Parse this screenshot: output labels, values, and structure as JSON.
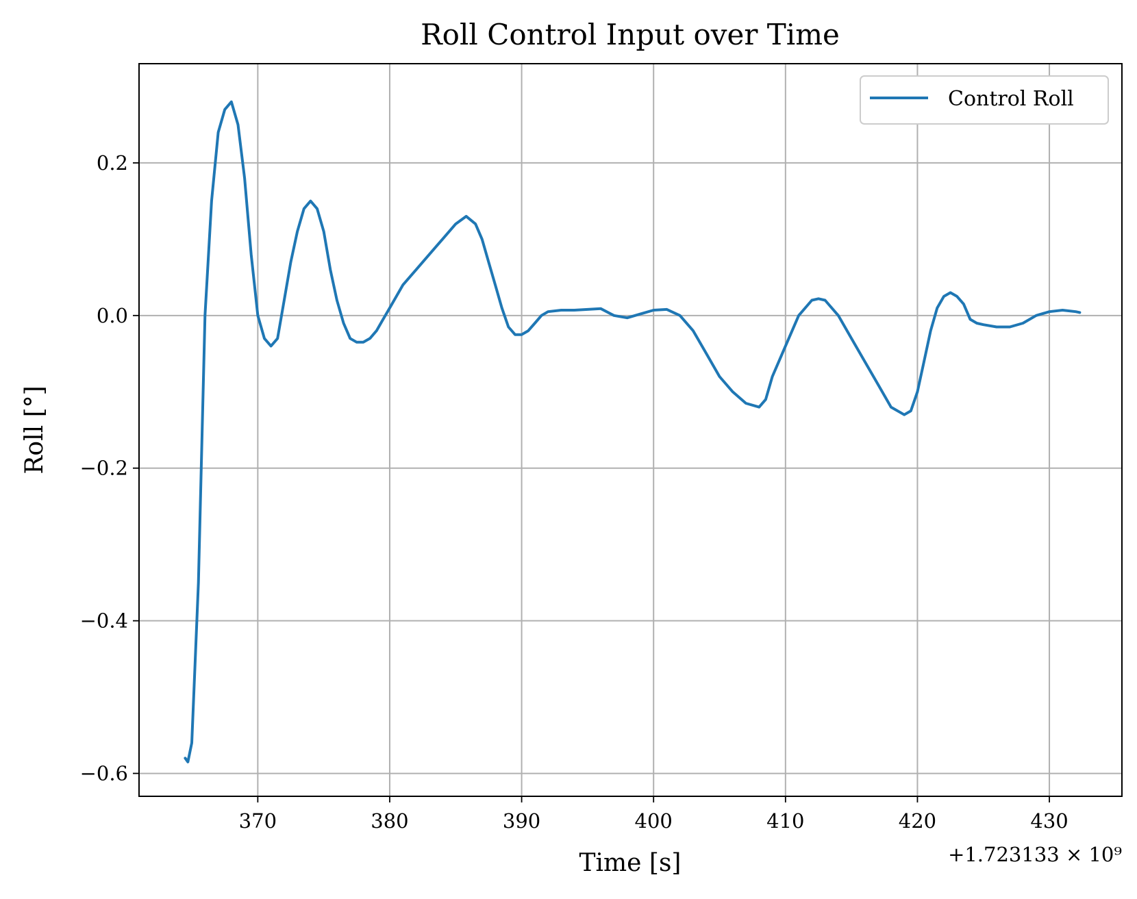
{
  "chart_data": {
    "type": "line",
    "title": "Roll Control Input over Time",
    "xlabel": "Time [s]",
    "ylabel": "Roll [°]",
    "x_offset_label": "+1.723133 × 10⁹",
    "xlim": [
      361,
      435.5
    ],
    "ylim": [
      -0.63,
      0.33
    ],
    "xticks": [
      370,
      380,
      390,
      400,
      410,
      420,
      430
    ],
    "xtick_labels": [
      "370",
      "380",
      "390",
      "400",
      "410",
      "420",
      "430"
    ],
    "yticks": [
      0.2,
      0.0,
      -0.2,
      -0.4,
      -0.6
    ],
    "ytick_labels": [
      "0.2",
      "0.0",
      "−0.2",
      "−0.4",
      "−0.6"
    ],
    "grid": true,
    "legend_position": "top-right",
    "series": [
      {
        "name": "Control Roll",
        "color": "#1f77b4",
        "x": [
          364.5,
          364.7,
          365.0,
          365.5,
          366.0,
          366.5,
          367.0,
          367.5,
          368.0,
          368.5,
          369.0,
          369.5,
          370.0,
          370.5,
          371.0,
          371.5,
          372.0,
          372.5,
          373.0,
          373.5,
          374.0,
          374.5,
          375.0,
          375.5,
          376.0,
          376.5,
          377.0,
          377.5,
          378.0,
          378.5,
          379.0,
          379.5,
          380.0,
          381.0,
          382.0,
          383.0,
          384.0,
          385.0,
          385.8,
          386.5,
          387.0,
          387.5,
          388.0,
          388.5,
          389.0,
          389.5,
          390.0,
          390.5,
          391.0,
          391.5,
          392.0,
          393.0,
          394.0,
          395.0,
          396.0,
          397.0,
          398.0,
          399.0,
          400.0,
          401.0,
          402.0,
          403.0,
          404.0,
          405.0,
          406.0,
          407.0,
          408.0,
          408.5,
          409.0,
          410.0,
          411.0,
          412.0,
          412.5,
          413.0,
          414.0,
          415.0,
          416.0,
          417.0,
          418.0,
          419.0,
          419.5,
          420.0,
          420.5,
          421.0,
          421.5,
          422.0,
          422.5,
          423.0,
          423.5,
          424.0,
          424.5,
          425.0,
          426.0,
          427.0,
          428.0,
          429.0,
          430.0,
          431.0,
          432.0,
          432.3
        ],
        "y": [
          -0.58,
          -0.585,
          -0.56,
          -0.35,
          -0.0,
          0.15,
          0.24,
          0.27,
          0.28,
          0.25,
          0.18,
          0.08,
          0.0,
          -0.03,
          -0.04,
          -0.03,
          0.02,
          0.07,
          0.11,
          0.14,
          0.15,
          0.14,
          0.11,
          0.06,
          0.02,
          -0.01,
          -0.03,
          -0.035,
          -0.035,
          -0.03,
          -0.02,
          -0.005,
          0.01,
          0.04,
          0.06,
          0.08,
          0.1,
          0.12,
          0.13,
          0.12,
          0.1,
          0.07,
          0.04,
          0.01,
          -0.015,
          -0.025,
          -0.025,
          -0.02,
          -0.01,
          0.0,
          0.005,
          0.007,
          0.007,
          0.008,
          0.009,
          0.0,
          -0.003,
          0.002,
          0.007,
          0.008,
          0.0,
          -0.02,
          -0.05,
          -0.08,
          -0.1,
          -0.115,
          -0.12,
          -0.11,
          -0.08,
          -0.04,
          0.0,
          0.02,
          0.022,
          0.02,
          0.0,
          -0.03,
          -0.06,
          -0.09,
          -0.12,
          -0.13,
          -0.125,
          -0.1,
          -0.06,
          -0.02,
          0.01,
          0.025,
          0.03,
          0.025,
          0.015,
          -0.005,
          -0.01,
          -0.012,
          -0.015,
          -0.015,
          -0.01,
          0.0,
          0.005,
          0.007,
          0.005,
          0.004
        ]
      }
    ]
  }
}
